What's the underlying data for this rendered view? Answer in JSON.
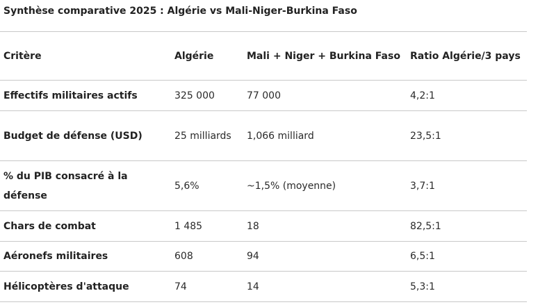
{
  "caption": "Synthèse comparative 2025 : Algérie vs Mali-Niger-Burkina Faso",
  "table": {
    "headers": [
      "Critère",
      "Algérie",
      "Mali + Niger + Burkina Faso",
      "Ratio Algérie/3 pays"
    ],
    "rows": [
      [
        "Effectifs militaires actifs",
        "325 000",
        "77 000",
        "4,2:1"
      ],
      [
        "Budget de défense (USD)",
        "25 milliards",
        "1,066 milliard",
        "23,5:1"
      ],
      [
        "% du PIB consacré à la défense",
        "5,6%",
        "~1,5% (moyenne)",
        "3,7:1"
      ],
      [
        "Chars de combat",
        "1 485",
        "18",
        "82,5:1"
      ],
      [
        "Aéronefs militaires",
        "608",
        "94",
        "6,5:1"
      ],
      [
        "Hélicoptères d'attaque",
        "74",
        "14",
        "5,3:1"
      ]
    ]
  }
}
